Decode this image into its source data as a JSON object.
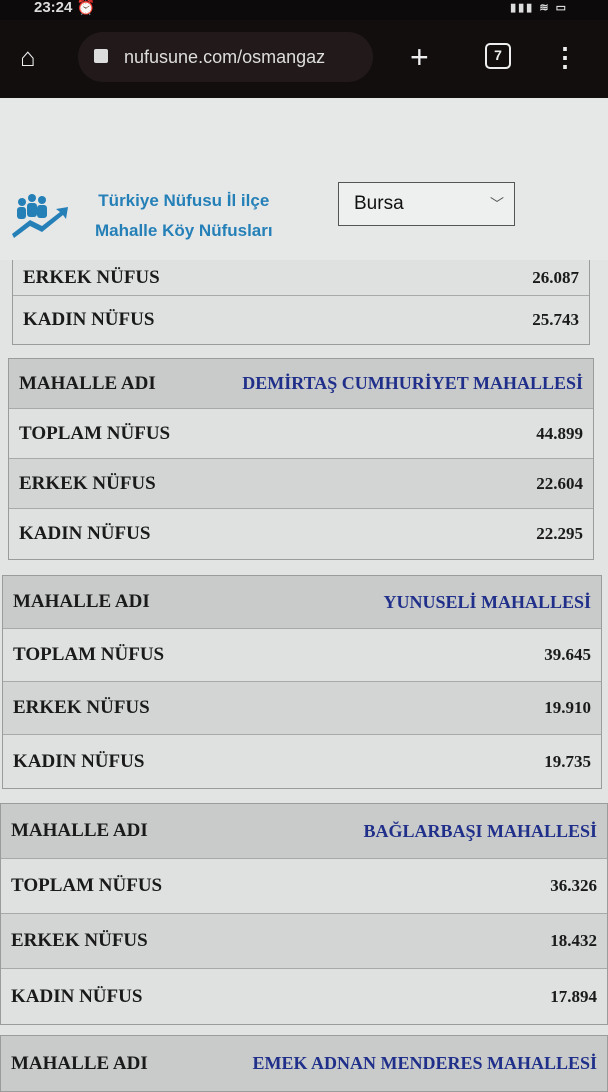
{
  "status_bar": {
    "time": "23:24",
    "icons": [
      "alarm-icon",
      "signal-icon",
      "wifi-icon",
      "battery-icon"
    ]
  },
  "browser": {
    "url": "nufusune.com/osmangaz",
    "tab_count": "7",
    "icons": [
      "home-icon",
      "lock-icon",
      "plus-icon",
      "tabs-icon",
      "menu-icon"
    ]
  },
  "site": {
    "title_line1": "Türkiye Nüfusu İl ilçe",
    "title_line2": "Mahalle Köy Nüfusları",
    "province_select": "Bursa",
    "accent": "#2580b8"
  },
  "partial_table": {
    "rows": [
      {
        "label": "ERKEK NÜFUS",
        "value": "26.087"
      },
      {
        "label": "KADIN NÜFUS",
        "value": "25.743"
      }
    ]
  },
  "tables": [
    {
      "name_label": "MAHALLE ADI",
      "name": "DEMİRTAŞ CUMHURİYET MAHALLESİ",
      "rows": [
        {
          "label": "TOPLAM NÜFUS",
          "value": "44.899"
        },
        {
          "label": "ERKEK NÜFUS",
          "value": "22.604"
        },
        {
          "label": "KADIN NÜFUS",
          "value": "22.295"
        }
      ]
    },
    {
      "name_label": "MAHALLE ADI",
      "name": "YUNUSELİ MAHALLESİ",
      "rows": [
        {
          "label": "TOPLAM NÜFUS",
          "value": "39.645"
        },
        {
          "label": "ERKEK NÜFUS",
          "value": "19.910"
        },
        {
          "label": "KADIN NÜFUS",
          "value": "19.735"
        }
      ]
    },
    {
      "name_label": "MAHALLE ADI",
      "name": "BAĞLARBAŞI MAHALLESİ",
      "rows": [
        {
          "label": "TOPLAM NÜFUS",
          "value": "36.326"
        },
        {
          "label": "ERKEK NÜFUS",
          "value": "18.432"
        },
        {
          "label": "KADIN NÜFUS",
          "value": "17.894"
        }
      ]
    },
    {
      "name_label": "MAHALLE ADI",
      "name": "EMEK ADNAN MENDERES MAHALLESİ",
      "rows": []
    }
  ]
}
